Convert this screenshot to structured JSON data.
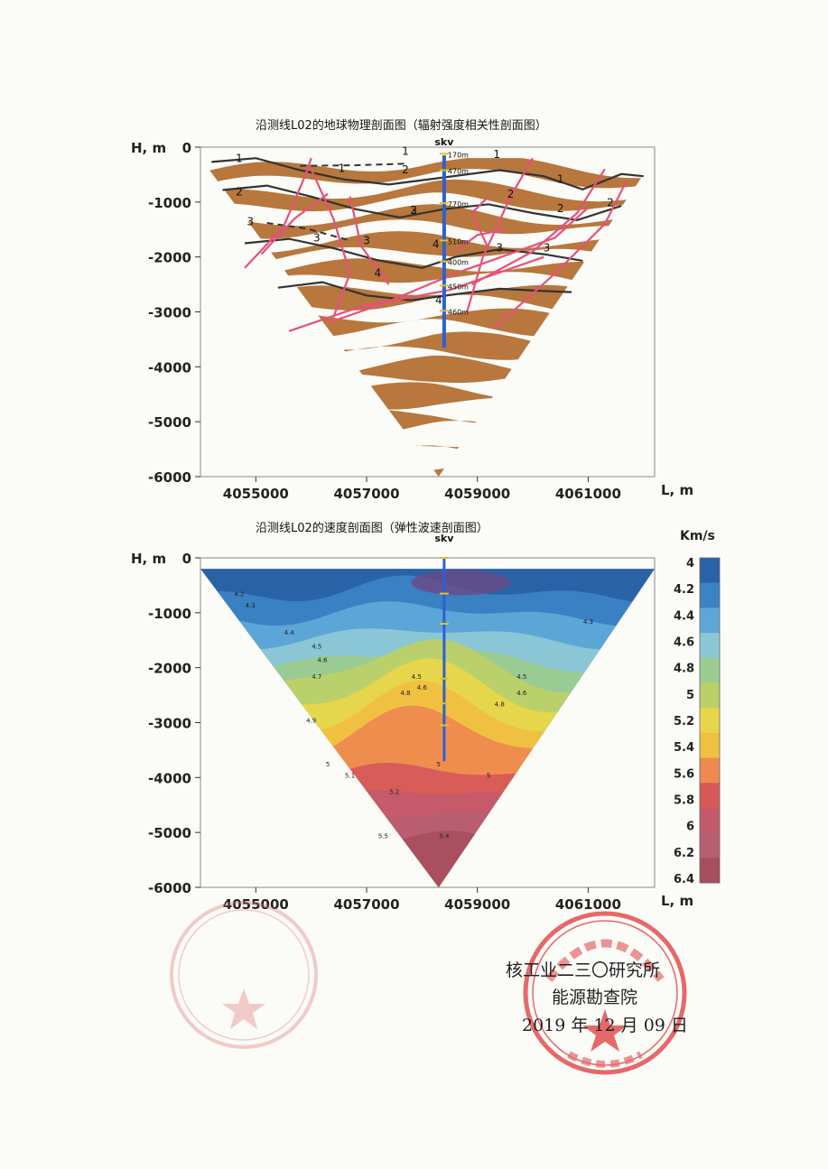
{
  "footer": {
    "org": "核工业二三〇研究所",
    "dept": "能源勘查院",
    "date": "2019 年 12 月 09 日"
  },
  "chart_data": [
    {
      "type": "heatmap",
      "title": "沿测线L02的地球物理剖面图（辐射强度相关性剖面图）",
      "ylabel": "H, m",
      "xlabel": "L, m",
      "x_ticks": [
        4055000,
        4057000,
        4059000,
        4061000
      ],
      "y_ticks": [
        0,
        -1000,
        -2000,
        -3000,
        -4000,
        -5000,
        -6000
      ],
      "xlim": [
        4054000,
        4062200
      ],
      "ylim": [
        -6000,
        0
      ],
      "well_label": "skv",
      "well_x": 4058400,
      "well_depth_labels": [
        {
          "text": "170m",
          "h": -120
        },
        {
          "text": "470m",
          "h": -420
        },
        {
          "text": "770m",
          "h": -1020
        },
        {
          "text": "510m",
          "h": -1700
        },
        {
          "text": "400m",
          "h": -2080
        },
        {
          "text": "450m",
          "h": -2520
        },
        {
          "text": "460m",
          "h": -2980
        }
      ],
      "horizons": [
        {
          "label": "1",
          "points": [
            [
              4054200,
              -270
            ],
            [
              4055000,
              -200
            ],
            [
              4055800,
              -420
            ],
            [
              4056600,
              -590
            ],
            [
              4057400,
              -680
            ],
            [
              4058400,
              -550
            ],
            [
              4059400,
              -420
            ],
            [
              4060200,
              -530
            ],
            [
              4060900,
              -770
            ],
            [
              4061600,
              -490
            ],
            [
              4062000,
              -530
            ]
          ]
        },
        {
          "label": "2",
          "points": [
            [
              4054400,
              -780
            ],
            [
              4055200,
              -700
            ],
            [
              4056000,
              -900
            ],
            [
              4056800,
              -1130
            ],
            [
              4057600,
              -1280
            ],
            [
              4058400,
              -1130
            ],
            [
              4059200,
              -1040
            ],
            [
              4060000,
              -1200
            ],
            [
              4060800,
              -1330
            ],
            [
              4061600,
              -1070
            ]
          ]
        },
        {
          "label": "3",
          "points": [
            [
              4054800,
              -1750
            ],
            [
              4055600,
              -1670
            ],
            [
              4056400,
              -1840
            ],
            [
              4057200,
              -2060
            ],
            [
              4058000,
              -2200
            ],
            [
              4058600,
              -2000
            ],
            [
              4059400,
              -1860
            ],
            [
              4060200,
              -1950
            ],
            [
              4060900,
              -2070
            ]
          ]
        },
        {
          "label": "4",
          "points": [
            [
              4055400,
              -2560
            ],
            [
              4056200,
              -2460
            ],
            [
              4057000,
              -2700
            ],
            [
              4057800,
              -2790
            ],
            [
              4058600,
              -2680
            ],
            [
              4059400,
              -2580
            ],
            [
              4060200,
              -2620
            ],
            [
              4060700,
              -2640
            ]
          ]
        }
      ],
      "dashed_horizons": [
        {
          "label": "1",
          "points": [
            [
              4055800,
              -340
            ],
            [
              4056800,
              -330
            ],
            [
              4057700,
              -300
            ]
          ]
        },
        {
          "label": "3",
          "points": [
            [
              4055200,
              -1380
            ],
            [
              4055900,
              -1480
            ],
            [
              4056700,
              -1700
            ]
          ]
        }
      ],
      "horizon_labels": [
        {
          "text": "1",
          "x": 4054700,
          "h": -270
        },
        {
          "text": "1",
          "x": 4056550,
          "h": -450
        },
        {
          "text": "1",
          "x": 4057700,
          "h": -140
        },
        {
          "text": "2",
          "x": 4057700,
          "h": -480
        },
        {
          "text": "1",
          "x": 4059350,
          "h": -200
        },
        {
          "text": "1",
          "x": 4060500,
          "h": -650
        },
        {
          "text": "2",
          "x": 4054700,
          "h": -880
        },
        {
          "text": "2",
          "x": 4057850,
          "h": -1220
        },
        {
          "text": "3",
          "x": 4057850,
          "h": -1220
        },
        {
          "text": "2",
          "x": 4059600,
          "h": -920
        },
        {
          "text": "2",
          "x": 4060500,
          "h": -1180
        },
        {
          "text": "2",
          "x": 4061400,
          "h": -1080
        },
        {
          "text": "3",
          "x": 4054900,
          "h": -1420
        },
        {
          "text": "3",
          "x": 4056100,
          "h": -1720
        },
        {
          "text": "3",
          "x": 4057000,
          "h": -1770
        },
        {
          "text": "4",
          "x": 4058250,
          "h": -1830
        },
        {
          "text": "3",
          "x": 4059400,
          "h": -1900
        },
        {
          "text": "3",
          "x": 4060250,
          "h": -1900
        },
        {
          "text": "4",
          "x": 4057200,
          "h": -2360
        },
        {
          "text": "4",
          "x": 4058300,
          "h": -2850
        }
      ],
      "faults": [
        [
          [
            4054800,
            -2200
          ],
          [
            4055500,
            -1450
          ],
          [
            4055900,
            -500
          ],
          [
            4056000,
            -200
          ]
        ],
        [
          [
            4055100,
            -1950
          ],
          [
            4055700,
            -1300
          ],
          [
            4056300,
            -850
          ]
        ],
        [
          [
            4056400,
            -3100
          ],
          [
            4056700,
            -2300
          ],
          [
            4056400,
            -1300
          ],
          [
            4056000,
            -400
          ]
        ],
        [
          [
            4055600,
            -3350
          ],
          [
            4056900,
            -2900
          ],
          [
            4058500,
            -2600
          ],
          [
            4060200,
            -2000
          ]
        ],
        [
          [
            4056300,
            -3200
          ],
          [
            4057300,
            -2850
          ],
          [
            4058600,
            -2300
          ],
          [
            4060400,
            -1650
          ],
          [
            4061000,
            -1100
          ]
        ],
        [
          [
            4057400,
            -2500
          ],
          [
            4056900,
            -1800
          ],
          [
            4056700,
            -900
          ]
        ],
        [
          [
            4058800,
            -3050
          ],
          [
            4059100,
            -2000
          ],
          [
            4059600,
            -900
          ],
          [
            4060000,
            -200
          ]
        ],
        [
          [
            4058600,
            -1900
          ],
          [
            4059000,
            -1600
          ],
          [
            4059500,
            -1500
          ]
        ],
        [
          [
            4058900,
            -2500
          ],
          [
            4060000,
            -1900
          ],
          [
            4060800,
            -1200
          ],
          [
            4061300,
            -400
          ]
        ],
        [
          [
            4059300,
            -3300
          ],
          [
            4060400,
            -2300
          ],
          [
            4061300,
            -1400
          ],
          [
            4061700,
            -600
          ]
        ],
        [
          [
            4059200,
            -1850
          ],
          [
            4058900,
            -1200
          ],
          [
            4059200,
            -900
          ]
        ]
      ],
      "band_color": "#b7773d"
    },
    {
      "type": "heatmap",
      "title": "沿测线L02的速度剖面图（弹性波速剖面图）",
      "ylabel": "H, m",
      "xlabel": "L, m",
      "x_ticks": [
        4055000,
        4057000,
        4059000,
        4061000
      ],
      "y_ticks": [
        0,
        -1000,
        -2000,
        -3000,
        -4000,
        -5000,
        -6000
      ],
      "xlim": [
        4054000,
        4062200
      ],
      "ylim": [
        -6000,
        0
      ],
      "well_label": "skv",
      "well_x": 4058400,
      "colorbar": {
        "unit": "Km/s",
        "ticks": [
          "4",
          "4.2",
          "4.4",
          "4.6",
          "4.8",
          "5",
          "5.2",
          "5.4",
          "5.6",
          "5.8",
          "6",
          "6.2",
          "6.4"
        ],
        "colors": [
          "#2a62a8",
          "#3a83c4",
          "#5ea6d8",
          "#8cc7d6",
          "#9acb8f",
          "#bcd068",
          "#e8d64a",
          "#f0c040",
          "#ee8a50",
          "#d65a58",
          "#c35a6c",
          "#b85e72",
          "#a84e5e"
        ]
      },
      "contour_labels": [
        {
          "text": "4.2",
          "x": 4054700,
          "h": -700
        },
        {
          "text": "4.3",
          "x": 4054900,
          "h": -900
        },
        {
          "text": "4.4",
          "x": 4055600,
          "h": -1400
        },
        {
          "text": "4.5",
          "x": 4056100,
          "h": -1650
        },
        {
          "text": "4.6",
          "x": 4056200,
          "h": -1900
        },
        {
          "text": "4.7",
          "x": 4056100,
          "h": -2200
        },
        {
          "text": "4.5",
          "x": 4057900,
          "h": -2200
        },
        {
          "text": "4.6",
          "x": 4058000,
          "h": -2400
        },
        {
          "text": "4.8",
          "x": 4057700,
          "h": -2500
        },
        {
          "text": "4.5",
          "x": 4059800,
          "h": -2200
        },
        {
          "text": "4.6",
          "x": 4059800,
          "h": -2500
        },
        {
          "text": "4.8",
          "x": 4059400,
          "h": -2700
        },
        {
          "text": "4.3",
          "x": 4061000,
          "h": -1200
        },
        {
          "text": "4.9",
          "x": 4056000,
          "h": -3000
        },
        {
          "text": "5",
          "x": 4056300,
          "h": -3800
        },
        {
          "text": "5.1",
          "x": 4056700,
          "h": -4000
        },
        {
          "text": "5.2",
          "x": 4057500,
          "h": -4300
        },
        {
          "text": "5",
          "x": 4058300,
          "h": -3800
        },
        {
          "text": "5",
          "x": 4059200,
          "h": -4000
        },
        {
          "text": "5.5",
          "x": 4057300,
          "h": -5100
        },
        {
          "text": "5.4",
          "x": 4058400,
          "h": -5100
        }
      ]
    }
  ]
}
